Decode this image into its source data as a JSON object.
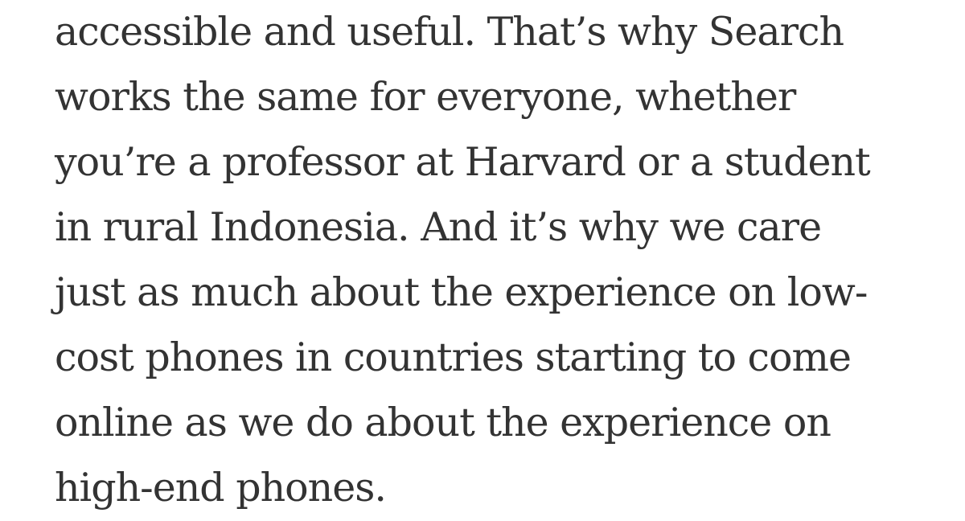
{
  "article": {
    "lines": [
      "accessible and useful. That’s why Search",
      "works the same for everyone, whether",
      "you’re a professor at Harvard or a student",
      "in rural Indonesia. And it’s why we care",
      "just as much about the experience on low-",
      "cost phones in countries starting to come",
      "online as we do about the experience on",
      "high-end phones."
    ]
  }
}
